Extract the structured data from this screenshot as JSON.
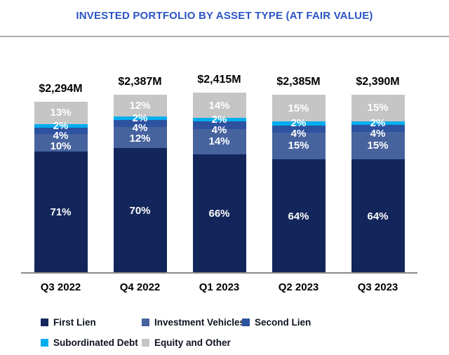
{
  "title": "INVESTED PORTFOLIO BY ASSET TYPE (AT FAIR VALUE)",
  "styles": {
    "title_color": "#2B54C6",
    "divider_color": "#ABABAB",
    "axis_line_color": "#8A8A8A",
    "total_label_color": "#000000",
    "percent_label_color": "#FFFFFF",
    "background_color": "#FFFFFF"
  },
  "chart_data": {
    "type": "bar",
    "stacked": true,
    "title": "INVESTED PORTFOLIO BY ASSET TYPE (AT FAIR VALUE)",
    "categories": [
      "Q3 2022",
      "Q4 2022",
      "Q1 2023",
      "Q2 2023",
      "Q3 2023"
    ],
    "bar_total_labels": [
      "$2,294M",
      "$2,387M",
      "$2,415M",
      "$2,385M",
      "$2,390M"
    ],
    "bar_totals_millions": [
      2294,
      2387,
      2415,
      2385,
      2390
    ],
    "series": [
      {
        "name": "First Lien",
        "color": "#13265B",
        "values": [
          71,
          70,
          66,
          64,
          64
        ]
      },
      {
        "name": "Investment Vehicles",
        "color": "#47639E",
        "values": [
          10,
          12,
          14,
          15,
          15
        ]
      },
      {
        "name": "Second Lien",
        "color": "#2C52A0",
        "values": [
          4,
          4,
          4,
          4,
          4
        ]
      },
      {
        "name": "Subordinated Debt",
        "color": "#00AEEF",
        "values": [
          2,
          2,
          2,
          2,
          2
        ]
      },
      {
        "name": "Equity and Other",
        "color": "#C6C5C5",
        "values": [
          13,
          12,
          14,
          15,
          15
        ]
      }
    ],
    "value_suffix": "%",
    "ylim": [
      0,
      100
    ],
    "grid": false,
    "legend_position": "bottom",
    "bar_heights_proportional_to_totals": true
  }
}
